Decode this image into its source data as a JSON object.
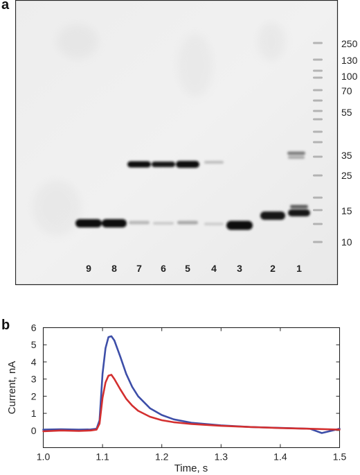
{
  "panel_a": {
    "label": "a",
    "marker_sizes": [
      "250",
      "130",
      "100",
      "70",
      "55",
      "35",
      "25",
      "15",
      "10"
    ],
    "lanes": [
      "9",
      "8",
      "7",
      "6",
      "5",
      "4",
      "3",
      "2",
      "1"
    ]
  },
  "panel_b": {
    "label": "b",
    "chart_data": {
      "type": "line",
      "xlabel": "Time, s",
      "ylabel": "Current, nA",
      "xlim": [
        1.0,
        1.5
      ],
      "ylim": [
        -1,
        6
      ],
      "xticks": [
        "1.0",
        "1.1",
        "1.2",
        "1.3",
        "1.4",
        "1.5"
      ],
      "yticks": [
        "0",
        "1",
        "2",
        "3",
        "4",
        "5",
        "6"
      ],
      "grid": false,
      "series": [
        {
          "color": "#3d4ea8",
          "x": [
            1.0,
            1.03,
            1.06,
            1.08,
            1.09,
            1.095,
            1.1,
            1.105,
            1.11,
            1.115,
            1.12,
            1.13,
            1.14,
            1.15,
            1.16,
            1.18,
            1.2,
            1.22,
            1.25,
            1.3,
            1.35,
            1.4,
            1.45,
            1.47,
            1.5
          ],
          "y": [
            0.05,
            0.07,
            0.05,
            0.06,
            0.1,
            0.6,
            3.3,
            4.8,
            5.45,
            5.5,
            5.25,
            4.3,
            3.3,
            2.55,
            2.0,
            1.3,
            0.9,
            0.65,
            0.45,
            0.3,
            0.2,
            0.15,
            0.1,
            -0.15,
            0.1
          ]
        },
        {
          "color": "#d32f2f",
          "x": [
            1.0,
            1.03,
            1.06,
            1.08,
            1.09,
            1.095,
            1.1,
            1.105,
            1.11,
            1.115,
            1.12,
            1.13,
            1.14,
            1.15,
            1.16,
            1.18,
            1.2,
            1.22,
            1.25,
            1.3,
            1.35,
            1.4,
            1.45,
            1.5
          ],
          "y": [
            -0.05,
            0.0,
            -0.03,
            0.0,
            0.05,
            0.4,
            1.9,
            2.8,
            3.2,
            3.25,
            3.0,
            2.4,
            1.85,
            1.45,
            1.15,
            0.8,
            0.6,
            0.48,
            0.38,
            0.27,
            0.2,
            0.14,
            0.1,
            0.05
          ]
        }
      ]
    }
  }
}
